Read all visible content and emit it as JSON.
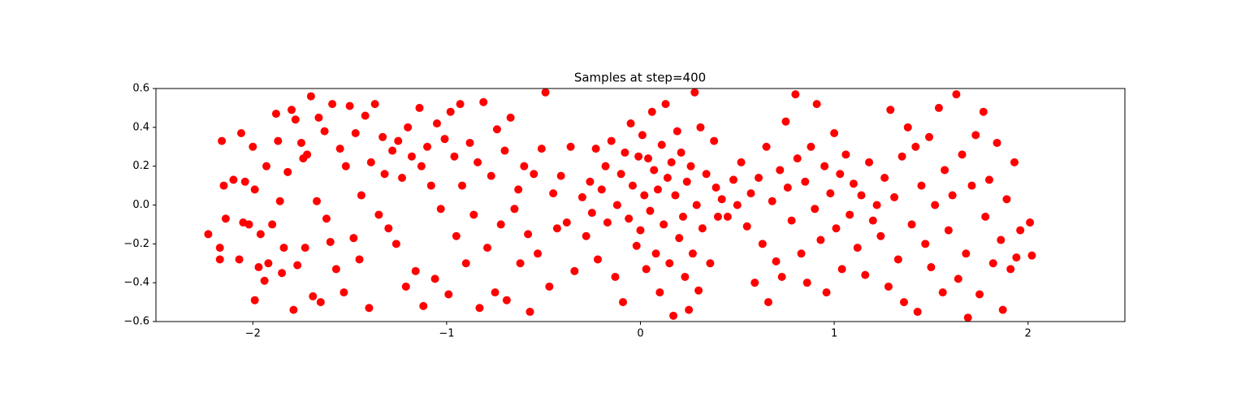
{
  "chart_data": {
    "type": "scatter",
    "title": "Samples at step=400",
    "color": "#ff0000",
    "xlim": [
      -2.5,
      2.5
    ],
    "ylim": [
      -0.6,
      0.6
    ],
    "xticks": [
      {
        "value": -2,
        "label": "−2"
      },
      {
        "value": -1,
        "label": "−1"
      },
      0,
      1,
      2
    ],
    "yticks": [
      {
        "value": -0.6,
        "label": "−0.6"
      },
      {
        "value": -0.4,
        "label": "−0.4"
      },
      {
        "value": -0.2,
        "label": "−0.2"
      },
      {
        "value": 0,
        "label": "0.0"
      },
      0.2,
      0.4,
      0.6
    ],
    "grid": false,
    "x": [
      -2.23,
      -2.17,
      -2.17,
      -2.16,
      -2.15,
      -2.14,
      -2.1,
      -2.07,
      -2.06,
      -2.05,
      -2.04,
      -2.02,
      -2.0,
      -1.99,
      -1.99,
      -1.97,
      -1.96,
      -1.94,
      -1.93,
      -1.92,
      -1.9,
      -1.88,
      -1.87,
      -1.86,
      -1.85,
      -1.84,
      -1.82,
      -1.8,
      -1.79,
      -1.78,
      -1.77,
      -1.75,
      -1.74,
      -1.73,
      -1.72,
      -1.7,
      -1.69,
      -1.67,
      -1.66,
      -1.65,
      -1.63,
      -1.62,
      -1.6,
      -1.59,
      -1.57,
      -1.55,
      -1.53,
      -1.52,
      -1.5,
      -1.48,
      -1.47,
      -1.45,
      -1.44,
      -1.42,
      -1.4,
      -1.39,
      -1.37,
      -1.35,
      -1.33,
      -1.32,
      -1.3,
      -1.28,
      -1.26,
      -1.25,
      -1.23,
      -1.21,
      -1.2,
      -1.18,
      -1.16,
      -1.14,
      -1.13,
      -1.12,
      -1.1,
      -1.08,
      -1.06,
      -1.05,
      -1.03,
      -1.01,
      -0.99,
      -0.98,
      -0.96,
      -0.95,
      -0.93,
      -0.92,
      -0.9,
      -0.88,
      -0.86,
      -0.84,
      -0.83,
      -0.81,
      -0.79,
      -0.77,
      -0.75,
      -0.74,
      -0.72,
      -0.7,
      -0.69,
      -0.67,
      -0.65,
      -0.63,
      -0.62,
      -0.6,
      -0.58,
      -0.57,
      -0.55,
      -0.53,
      -0.51,
      -0.49,
      -0.47,
      -0.45,
      -0.43,
      -0.41,
      -0.38,
      -0.36,
      -0.34,
      -0.3,
      -0.28,
      -0.26,
      -0.25,
      -0.23,
      -0.22,
      -0.2,
      -0.18,
      -0.17,
      -0.15,
      -0.13,
      -0.12,
      -0.1,
      -0.09,
      -0.08,
      -0.06,
      -0.05,
      -0.04,
      -0.02,
      -0.01,
      0.0,
      0.01,
      0.02,
      0.03,
      0.04,
      0.05,
      0.06,
      0.07,
      0.08,
      0.09,
      0.1,
      0.11,
      0.12,
      0.13,
      0.14,
      0.15,
      0.16,
      0.17,
      0.18,
      0.19,
      0.2,
      0.21,
      0.22,
      0.23,
      0.24,
      0.25,
      0.26,
      0.27,
      0.28,
      0.29,
      0.3,
      0.31,
      0.32,
      0.34,
      0.36,
      0.38,
      0.39,
      0.4,
      0.42,
      0.45,
      0.48,
      0.5,
      0.52,
      0.55,
      0.57,
      0.59,
      0.61,
      0.63,
      0.65,
      0.66,
      0.68,
      0.7,
      0.72,
      0.73,
      0.75,
      0.76,
      0.78,
      0.8,
      0.81,
      0.83,
      0.85,
      0.86,
      0.88,
      0.9,
      0.91,
      0.93,
      0.95,
      0.96,
      0.98,
      1.0,
      1.01,
      1.03,
      1.04,
      1.06,
      1.08,
      1.1,
      1.12,
      1.14,
      1.16,
      1.18,
      1.2,
      1.22,
      1.24,
      1.26,
      1.28,
      1.29,
      1.31,
      1.33,
      1.35,
      1.36,
      1.38,
      1.4,
      1.42,
      1.43,
      1.45,
      1.47,
      1.49,
      1.5,
      1.52,
      1.54,
      1.56,
      1.57,
      1.59,
      1.61,
      1.63,
      1.64,
      1.66,
      1.68,
      1.69,
      1.71,
      1.73,
      1.75,
      1.77,
      1.78,
      1.8,
      1.82,
      1.84,
      1.86,
      1.87,
      1.89,
      1.91,
      1.93,
      1.94,
      1.96,
      2.01,
      2.02
    ],
    "values": [
      -0.15,
      -0.28,
      -0.22,
      0.33,
      0.1,
      -0.07,
      0.13,
      -0.28,
      0.37,
      -0.09,
      0.12,
      -0.1,
      0.3,
      0.08,
      -0.49,
      -0.32,
      -0.15,
      -0.39,
      0.2,
      -0.3,
      -0.1,
      0.47,
      0.33,
      0.02,
      -0.35,
      -0.22,
      0.17,
      0.49,
      -0.54,
      0.44,
      -0.31,
      0.32,
      0.24,
      -0.22,
      0.26,
      0.56,
      -0.47,
      0.02,
      0.45,
      -0.5,
      0.38,
      -0.07,
      -0.19,
      0.52,
      -0.33,
      0.29,
      -0.45,
      0.2,
      0.51,
      -0.17,
      0.37,
      -0.28,
      0.05,
      0.46,
      -0.53,
      0.22,
      0.52,
      -0.05,
      0.35,
      0.16,
      -0.12,
      0.28,
      -0.2,
      0.33,
      0.14,
      -0.42,
      0.4,
      0.25,
      -0.34,
      0.5,
      0.2,
      -0.52,
      0.3,
      0.1,
      -0.38,
      0.42,
      -0.02,
      0.34,
      -0.46,
      0.48,
      0.25,
      -0.16,
      0.52,
      0.1,
      -0.3,
      0.32,
      -0.05,
      0.22,
      -0.53,
      0.53,
      -0.22,
      0.15,
      -0.45,
      0.39,
      -0.1,
      0.28,
      -0.49,
      0.45,
      -0.02,
      0.08,
      -0.3,
      0.2,
      -0.15,
      -0.55,
      0.16,
      -0.25,
      0.29,
      0.58,
      -0.42,
      0.06,
      -0.12,
      0.15,
      -0.09,
      0.3,
      -0.34,
      0.04,
      -0.16,
      0.12,
      -0.04,
      0.29,
      -0.28,
      0.08,
      0.2,
      -0.09,
      0.33,
      -0.37,
      0.0,
      0.16,
      -0.5,
      0.27,
      -0.07,
      0.42,
      0.1,
      -0.21,
      0.25,
      -0.13,
      0.36,
      0.05,
      -0.33,
      0.24,
      -0.03,
      0.48,
      0.18,
      -0.25,
      0.08,
      -0.45,
      0.31,
      -0.1,
      0.52,
      0.14,
      -0.3,
      0.22,
      -0.57,
      0.05,
      0.38,
      -0.17,
      0.27,
      -0.06,
      -0.37,
      0.12,
      -0.54,
      0.2,
      -0.25,
      0.58,
      0.0,
      -0.44,
      0.4,
      -0.12,
      0.16,
      -0.3,
      0.33,
      0.09,
      -0.06,
      0.03,
      -0.06,
      0.13,
      0.0,
      0.22,
      -0.11,
      0.06,
      -0.4,
      0.14,
      -0.2,
      0.3,
      -0.5,
      0.02,
      -0.29,
      0.18,
      -0.37,
      0.43,
      0.09,
      -0.08,
      0.57,
      0.24,
      -0.25,
      0.12,
      -0.4,
      0.3,
      -0.02,
      0.52,
      -0.18,
      0.2,
      -0.45,
      0.06,
      0.37,
      -0.12,
      0.16,
      -0.33,
      0.26,
      -0.05,
      0.11,
      -0.22,
      0.05,
      -0.36,
      0.22,
      -0.08,
      0.0,
      -0.16,
      0.14,
      -0.42,
      0.49,
      0.04,
      -0.28,
      0.25,
      -0.5,
      0.4,
      -0.1,
      0.3,
      -0.55,
      0.1,
      -0.2,
      0.35,
      -0.32,
      0.0,
      0.5,
      -0.45,
      0.18,
      -0.13,
      0.05,
      0.57,
      -0.38,
      0.26,
      -0.25,
      -0.58,
      0.1,
      0.36,
      -0.46,
      0.48,
      -0.06,
      0.13,
      -0.3,
      0.32,
      -0.18,
      -0.54,
      0.03,
      -0.33,
      0.22,
      -0.27,
      -0.13,
      -0.09,
      -0.26
    ]
  }
}
